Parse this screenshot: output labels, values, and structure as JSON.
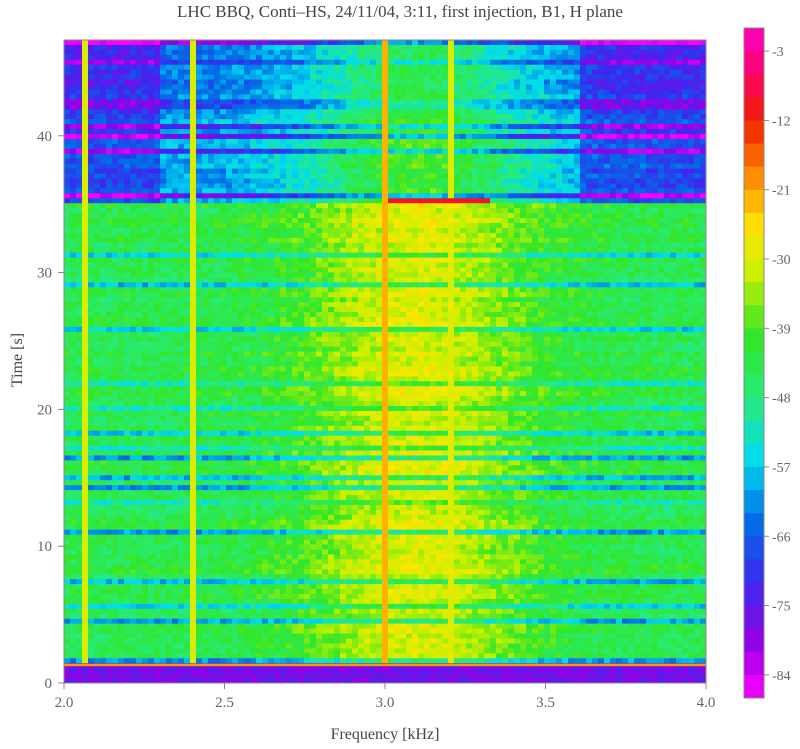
{
  "chart_data": {
    "type": "heatmap",
    "title": "LHC BBQ,  Conti–HS,  24/11/04,  3:11,  first injection,  B1,  H plane",
    "xlabel": "Frequency  [kHz]",
    "ylabel": "Time  [s]",
    "xlim": [
      2.0,
      4.0
    ],
    "ylim": [
      0,
      47
    ],
    "x_ticks": [
      2.0,
      2.5,
      3.0,
      3.5,
      4.0
    ],
    "x_tick_labels": [
      "2.0",
      "2.5",
      "3.0",
      "3.5",
      "4.0"
    ],
    "y_ticks": [
      0,
      10,
      20,
      30,
      40
    ],
    "y_tick_labels": [
      "0",
      "10",
      "20",
      "30",
      "40"
    ],
    "colorbar": {
      "range": [
        -87,
        0
      ],
      "ticks": [
        -3,
        -12,
        -21,
        -30,
        -39,
        -48,
        -57,
        -66,
        -75,
        -84
      ],
      "tick_labels": [
        "-3",
        "-12",
        "-21",
        "-30",
        "-39",
        "-48",
        "-57",
        "-66",
        "-75",
        "-84"
      ],
      "band_step": 3
    },
    "features": {
      "vertical_lines_khz": [
        2.06,
        2.4,
        3.0,
        3.2
      ],
      "injection_time_s": 1.3,
      "secondary_event_time_s": 35.2,
      "secondary_event_khz_range": [
        3.0,
        3.33
      ]
    }
  },
  "colors": {
    "background": "#ffffff",
    "frame": "#888888"
  }
}
